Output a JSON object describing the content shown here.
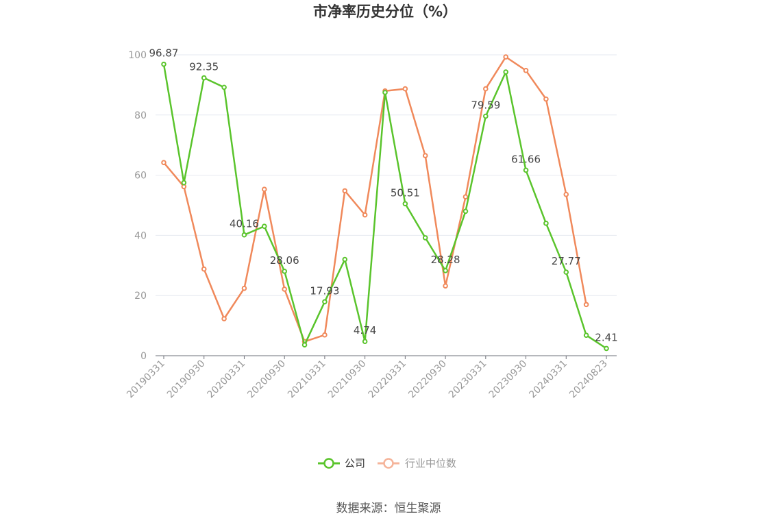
{
  "chart_data": {
    "type": "line",
    "title": "市净率历史分位（%）",
    "xlabel": "",
    "ylabel": "",
    "ylim": [
      0,
      100
    ],
    "yticks": [
      0,
      20,
      40,
      60,
      80,
      100
    ],
    "grid": true,
    "legend_position": "bottom",
    "x": [
      "20190331",
      "20190630",
      "20190930",
      "20191231",
      "20200331",
      "20200630",
      "20200930",
      "20201231",
      "20210331",
      "20210630",
      "20210930",
      "20211231",
      "20220331",
      "20220630",
      "20220930",
      "20221231",
      "20230331",
      "20230630",
      "20230930",
      "20231231",
      "20240331",
      "20240630",
      "20240823"
    ],
    "x_tick_labels": [
      "20190331",
      "20190930",
      "20200331",
      "20200930",
      "20210331",
      "20210930",
      "20220331",
      "20220930",
      "20230331",
      "20230930",
      "20240331",
      "20240823"
    ],
    "x_tick_indices": [
      0,
      2,
      4,
      6,
      8,
      10,
      12,
      14,
      16,
      18,
      20,
      22
    ],
    "series": [
      {
        "name": "公司",
        "color": "#5ac42c",
        "values": [
          96.87,
          57.5,
          92.35,
          89.2,
          40.16,
          43.0,
          28.06,
          3.6,
          17.93,
          32.0,
          4.74,
          87.5,
          50.51,
          39.2,
          28.28,
          48.0,
          79.59,
          94.3,
          61.66,
          44.0,
          27.77,
          6.8,
          2.41
        ],
        "labeled_indices": [
          0,
          2,
          4,
          6,
          8,
          10,
          12,
          14,
          16,
          18,
          20,
          22
        ]
      },
      {
        "name": "行业中位数",
        "color": "#f0895b",
        "values": [
          64.2,
          56.2,
          28.8,
          12.3,
          22.4,
          55.3,
          22.1,
          4.7,
          6.9,
          54.8,
          46.8,
          88.0,
          88.7,
          66.5,
          23.2,
          52.8,
          88.7,
          99.3,
          94.8,
          85.3,
          53.6,
          17.0,
          null
        ]
      }
    ]
  },
  "legend": {
    "company_label": "公司",
    "industry_label": "行业中位数",
    "company_color": "#5ac42c",
    "industry_color": "#f5b49a",
    "company_text_color": "#333333",
    "industry_text_color": "#999999"
  },
  "source": "数据来源：恒生聚源"
}
